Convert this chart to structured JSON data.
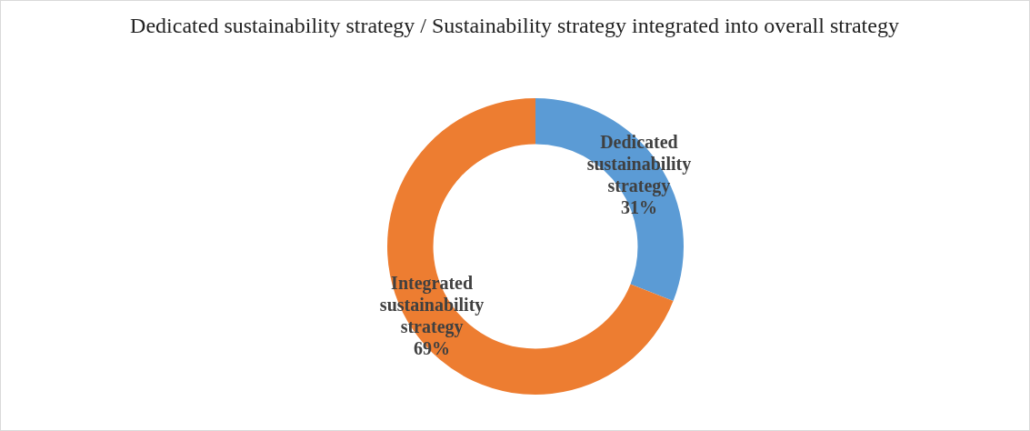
{
  "chart_data": {
    "type": "donut",
    "title": "Dedicated sustainability strategy / Sustainability strategy integrated into overall strategy",
    "categories": [
      "Dedicated sustainability strategy",
      "Integrated sustainability strategy"
    ],
    "values": [
      31,
      69
    ],
    "colors": [
      "#5b9bd5",
      "#ed7d31"
    ],
    "value_labels": [
      "31%",
      "69%"
    ],
    "legend": false
  }
}
